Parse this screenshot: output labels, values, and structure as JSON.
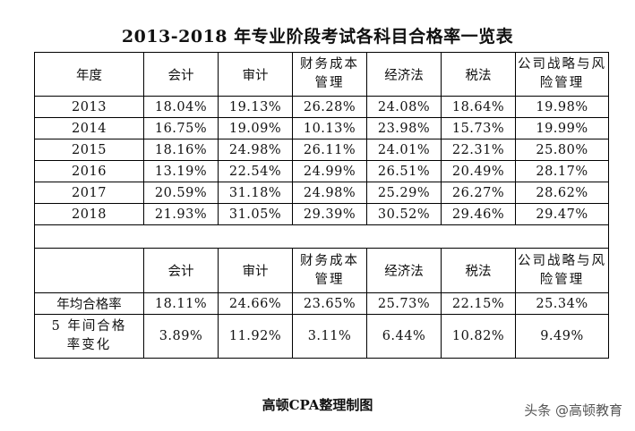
{
  "title": "2013-2018 年专业阶段考试各科目合格率一览表",
  "header": {
    "year_label": "年度",
    "subjects": [
      "会计",
      "审计",
      "财务成本管理",
      "经济法",
      "税法",
      "公司战略与风险管理"
    ]
  },
  "rows": [
    {
      "year": "2013",
      "values": [
        "18.04%",
        "19.13%",
        "26.28%",
        "24.08%",
        "18.64%",
        "19.98%"
      ]
    },
    {
      "year": "2014",
      "values": [
        "16.75%",
        "19.09%",
        "10.13%",
        "23.98%",
        "15.73%",
        "19.99%"
      ]
    },
    {
      "year": "2015",
      "values": [
        "18.16%",
        "24.98%",
        "26.11%",
        "24.01%",
        "22.31%",
        "25.80%"
      ]
    },
    {
      "year": "2016",
      "values": [
        "13.19%",
        "22.54%",
        "24.99%",
        "26.51%",
        "20.49%",
        "28.17%"
      ]
    },
    {
      "year": "2017",
      "values": [
        "20.59%",
        "31.18%",
        "24.98%",
        "25.29%",
        "26.27%",
        "28.62%"
      ]
    },
    {
      "year": "2018",
      "values": [
        "21.93%",
        "31.05%",
        "29.39%",
        "30.52%",
        "29.46%",
        "29.47%"
      ]
    }
  ],
  "summary": {
    "subjects": [
      "会计",
      "审计",
      "财务成本管理",
      "经济法",
      "税法",
      "公司战略与风险管理"
    ],
    "avg_label": "年均合格率",
    "avg_values": [
      "18.11%",
      "24.66%",
      "23.65%",
      "25.73%",
      "22.15%",
      "25.34%"
    ],
    "change_label": "5 年间合格率变化",
    "change_values": [
      "3.89%",
      "11.92%",
      "3.11%",
      "6.44%",
      "10.82%",
      "9.49%"
    ]
  },
  "footer": "高顿CPA整理制图",
  "watermark": "头条 @高顿教育"
}
